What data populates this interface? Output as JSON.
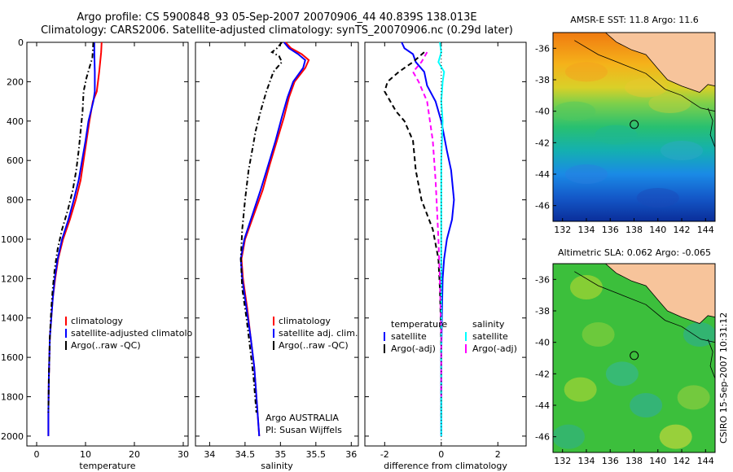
{
  "header": {
    "title_line1": "Argo profile: CS 5900848_93 05-Sep-2007 20070906_44 40.839S 138.013E",
    "title_line2": "Climatology: CARS2006. Satellite-adjusted climatology: synTS_20070906.nc (0.29d later)"
  },
  "footer": {
    "credit": "CSIRO 15-Sep-2007 10:31:12"
  },
  "colors": {
    "red": "#ff0000",
    "blue": "#0000ff",
    "black": "#000000",
    "cyan": "#00ffff",
    "magenta": "#ff00ff",
    "land": "#f7c49b"
  },
  "chart_data": [
    {
      "type": "line",
      "panel": "temperature",
      "xlabel": "temperature",
      "ylabel": "",
      "xlim": [
        -2,
        31
      ],
      "ylim": [
        2050,
        0
      ],
      "xticks": [
        0,
        10,
        20,
        30
      ],
      "yticks": [
        0,
        200,
        400,
        600,
        800,
        1000,
        1200,
        1400,
        1600,
        1800,
        2000
      ],
      "legend": {
        "position": "lower-right",
        "entries": [
          "climatology",
          "satellite-adjusted climatolo",
          "Argo(..raw -QC)"
        ]
      },
      "series": [
        {
          "name": "climatology",
          "color": "red",
          "style": "solid",
          "x": [
            13.3,
            13.2,
            12.8,
            12.3,
            11.5,
            10.8,
            10.2,
            9.6,
            9.0,
            8.0,
            6.8,
            5.4,
            4.4,
            3.8,
            3.3,
            3.0,
            2.7,
            2.5,
            2.4,
            2.4
          ],
          "y": [
            0,
            50,
            150,
            250,
            300,
            400,
            500,
            600,
            700,
            800,
            900,
            1000,
            1100,
            1200,
            1300,
            1400,
            1500,
            1700,
            1880,
            2000
          ]
        },
        {
          "name": "satellite-adjusted climatology",
          "color": "blue",
          "style": "solid",
          "x": [
            11.8,
            11.8,
            11.9,
            11.9,
            11.6,
            10.6,
            10.0,
            9.3,
            8.6,
            7.6,
            6.5,
            5.2,
            4.3,
            3.7,
            3.3,
            3.0,
            2.7,
            2.5,
            2.4,
            2.4
          ],
          "y": [
            0,
            50,
            150,
            250,
            300,
            400,
            500,
            600,
            700,
            800,
            900,
            1000,
            1100,
            1200,
            1300,
            1400,
            1500,
            1700,
            1880,
            2000
          ]
        },
        {
          "name": "Argo(..raw -QC)",
          "color": "black",
          "style": "dashdot",
          "x": [
            11.6,
            11.4,
            10.9,
            10.2,
            9.6,
            9.4,
            9.0,
            8.6,
            8.1,
            7.4,
            6.4,
            5.2,
            4.3,
            3.7,
            3.3,
            3.0,
            2.7,
            2.5,
            2.4
          ],
          "y": [
            0,
            80,
            120,
            180,
            250,
            350,
            450,
            550,
            650,
            750,
            850,
            950,
            1050,
            1150,
            1250,
            1350,
            1500,
            1700,
            1880
          ]
        }
      ]
    },
    {
      "type": "line",
      "panel": "salinity",
      "xlabel": "salinity",
      "ylabel": "",
      "xlim": [
        33.8,
        36.1
      ],
      "ylim": [
        2050,
        0
      ],
      "xticks": [
        34,
        34.5,
        35,
        35.5,
        36
      ],
      "legend": {
        "position": "lower-right",
        "entries": [
          "climatology",
          "satellite adj. clim.",
          "Argo(..raw -QC)"
        ]
      },
      "annotation": [
        "Argo AUSTRALIA",
        "PI: Susan Wijffels"
      ],
      "series": [
        {
          "name": "climatology",
          "color": "red",
          "style": "solid",
          "x": [
            35.07,
            35.15,
            35.3,
            35.4,
            35.35,
            35.2,
            35.12,
            35.05,
            34.95,
            34.85,
            34.75,
            34.62,
            34.5,
            34.45,
            34.47,
            34.53,
            34.58,
            34.63,
            34.67,
            34.7
          ],
          "y": [
            0,
            30,
            60,
            90,
            130,
            200,
            280,
            380,
            500,
            620,
            750,
            880,
            1000,
            1100,
            1200,
            1350,
            1500,
            1650,
            1850,
            2000
          ]
        },
        {
          "name": "satellite adj. clim.",
          "color": "blue",
          "style": "solid",
          "x": [
            35.05,
            35.12,
            35.25,
            35.35,
            35.32,
            35.18,
            35.1,
            35.02,
            34.93,
            34.83,
            34.72,
            34.6,
            34.49,
            34.44,
            34.46,
            34.52,
            34.58,
            34.63,
            34.67,
            34.7
          ],
          "y": [
            0,
            30,
            60,
            90,
            130,
            200,
            280,
            380,
            500,
            620,
            750,
            880,
            1000,
            1100,
            1200,
            1350,
            1500,
            1650,
            1850,
            2000
          ]
        },
        {
          "name": "Argo(..raw -QC)",
          "color": "black",
          "style": "dashdot",
          "x": [
            35.02,
            34.95,
            34.88,
            34.98,
            35.02,
            34.9,
            34.8,
            34.72,
            34.65,
            34.6,
            34.55,
            34.5,
            34.46,
            34.44,
            34.46,
            34.52,
            34.57,
            34.62,
            34.66
          ],
          "y": [
            0,
            30,
            50,
            70,
            100,
            150,
            250,
            350,
            450,
            550,
            650,
            800,
            950,
            1100,
            1250,
            1400,
            1550,
            1700,
            1880
          ]
        }
      ]
    },
    {
      "type": "line",
      "panel": "difference",
      "xlabel": "difference from climatology",
      "ylabel": "",
      "xlim": [
        -2.7,
        3.0
      ],
      "ylim": [
        2050,
        0
      ],
      "xticks": [
        -2,
        0,
        2
      ],
      "legend": {
        "position": "lower-right",
        "columns": [
          {
            "heading": "temperature",
            "entries": [
              "satellite",
              "Argo(-adj)"
            ]
          },
          {
            "heading": "salinity",
            "entries": [
              "satellite",
              "Argo(-adj)"
            ]
          }
        ]
      },
      "series": [
        {
          "name": "temperature satellite",
          "color": "blue",
          "style": "solid",
          "x": [
            -1.4,
            -1.3,
            -1.0,
            -0.9,
            -0.6,
            -0.5,
            -0.2,
            0.0,
            0.2,
            0.35,
            0.45,
            0.38,
            0.2,
            0.1,
            0.05,
            0.02,
            0.0,
            0.0,
            0.0
          ],
          "y": [
            0,
            30,
            60,
            100,
            150,
            220,
            300,
            400,
            550,
            650,
            800,
            900,
            1000,
            1100,
            1200,
            1400,
            1600,
            1800,
            2000
          ]
        },
        {
          "name": "temperature Argo(-adj)",
          "color": "black",
          "style": "dash",
          "x": [
            -0.6,
            -1.0,
            -1.5,
            -1.9,
            -2.0,
            -1.8,
            -1.6,
            -1.3,
            -1.0,
            -0.9,
            -0.7,
            -0.3,
            -0.1,
            -0.05,
            -0.02,
            0.0,
            0.0,
            0.0
          ],
          "y": [
            50,
            100,
            150,
            200,
            250,
            300,
            350,
            400,
            500,
            650,
            800,
            950,
            1100,
            1250,
            1400,
            1600,
            1800,
            1900
          ]
        },
        {
          "name": "salinity satellite",
          "color": "cyan",
          "style": "solid",
          "x": [
            -0.05,
            0.0,
            -0.1,
            0.1,
            0.05,
            0.0,
            0.05,
            0.0,
            0.0,
            0.0,
            0.0,
            0.0
          ],
          "y": [
            0,
            50,
            100,
            150,
            200,
            300,
            400,
            600,
            900,
            1300,
            1700,
            2000
          ]
        },
        {
          "name": "salinity Argo(-adj)",
          "color": "magenta",
          "style": "dash",
          "x": [
            -0.5,
            -0.7,
            -1.0,
            -0.8,
            -0.5,
            -0.4,
            -0.3,
            -0.2,
            -0.15,
            -0.1,
            -0.05,
            0.0,
            0.0
          ],
          "y": [
            50,
            100,
            150,
            200,
            300,
            400,
            500,
            700,
            850,
            1000,
            1200,
            1500,
            1800
          ]
        },
        {
          "name": "zero line",
          "color": "black",
          "style": "dot",
          "x": [
            0,
            0
          ],
          "y": [
            0,
            2050
          ]
        }
      ]
    },
    {
      "type": "heatmap",
      "panel": "sst-map",
      "title": "AMSR-E SST: 11.8 Argo: 11.6",
      "xlim": [
        131.2,
        144.8
      ],
      "ylim": [
        -47,
        -35
      ],
      "xticks": [
        132,
        134,
        136,
        138,
        140,
        142,
        144
      ],
      "yticks": [
        -36,
        -38,
        -40,
        -42,
        -44,
        -46
      ],
      "float_position": {
        "lon": 138.013,
        "lat": -40.839
      },
      "gradient": [
        {
          "lat": -35,
          "color": "#f07a10"
        },
        {
          "lat": -37,
          "color": "#f5b21a"
        },
        {
          "lat": -38.5,
          "color": "#d9d028"
        },
        {
          "lat": -39.5,
          "color": "#7ed04a"
        },
        {
          "lat": -41,
          "color": "#28c070"
        },
        {
          "lat": -42.5,
          "color": "#14b0b0"
        },
        {
          "lat": -44,
          "color": "#1a8ae6"
        },
        {
          "lat": -45.5,
          "color": "#1458c8"
        },
        {
          "lat": -47,
          "color": "#0a2e9a"
        }
      ]
    },
    {
      "type": "heatmap",
      "panel": "sla-map",
      "title": "Altimetric SLA: 0.062 Argo: -0.065",
      "xlim": [
        131.2,
        144.8
      ],
      "ylim": [
        -47,
        -35
      ],
      "xticks": [
        132,
        134,
        136,
        138,
        140,
        142,
        144
      ],
      "yticks": [
        -36,
        -38,
        -40,
        -42,
        -44,
        -46
      ],
      "float_position": {
        "lon": 138.013,
        "lat": -40.839
      },
      "base_color": "#3cbf3c"
    }
  ]
}
